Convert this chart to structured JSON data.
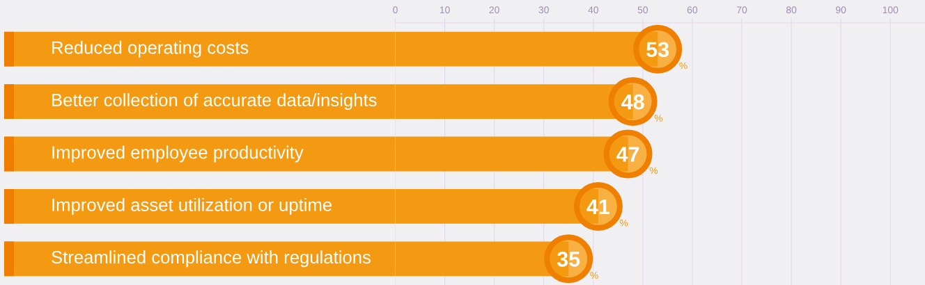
{
  "chart_data": {
    "type": "bar",
    "orientation": "horizontal",
    "categories": [
      "Reduced operating costs",
      "Better collection of accurate data/insights",
      "Improved employee productivity",
      "Improved asset utilization or uptime",
      "Streamlined compliance with regulations"
    ],
    "values": [
      53,
      48,
      47,
      41,
      35
    ],
    "color": "#f39a12",
    "xlim": [
      0,
      107
    ],
    "xticks": [
      0,
      10,
      20,
      30,
      40,
      50,
      60,
      70,
      80,
      90,
      100
    ],
    "grid": "x",
    "data_labels": true,
    "annotations": [
      {
        "text": "%",
        "x": 53,
        "y": "Reduced operating costs"
      },
      {
        "text": "%",
        "x": 48,
        "y": "Better collection of accurate data/insights"
      },
      {
        "text": "%",
        "x": 47,
        "y": "Improved employee productivity"
      },
      {
        "text": "%",
        "x": 41,
        "y": "Improved asset utilization or uptime"
      },
      {
        "text": "%",
        "x": 35,
        "y": "Streamlined compliance with regulations"
      }
    ]
  }
}
